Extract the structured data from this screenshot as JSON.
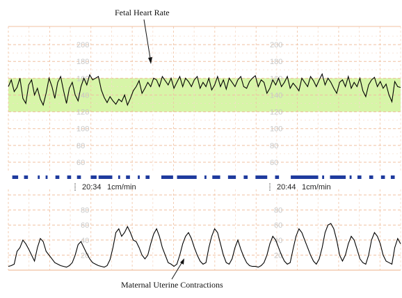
{
  "chart_data": {
    "type": "line",
    "annotations": {
      "fhr_label": "Fetal Heart Rate",
      "uc_label": "Maternal Uterine Contractions"
    },
    "fhr": {
      "ylim": [
        50,
        210
      ],
      "yticks": [
        "200",
        "180",
        "160",
        "140",
        "120",
        "100",
        "80",
        "60"
      ],
      "normal_band": [
        120,
        160
      ],
      "values": [
        150,
        158,
        144,
        149,
        160,
        136,
        130,
        152,
        158,
        140,
        148,
        135,
        128,
        142,
        160,
        150,
        136,
        155,
        162,
        145,
        130,
        148,
        155,
        140,
        133,
        150,
        160,
        152,
        164,
        158,
        160,
        162,
        146,
        137,
        131,
        138,
        133,
        129,
        135,
        132,
        140,
        128,
        136,
        145,
        150,
        157,
        142,
        148,
        155,
        150,
        160,
        158,
        150,
        162,
        157,
        152,
        160,
        148,
        155,
        162,
        150,
        160,
        156,
        150,
        158,
        162,
        148,
        155,
        150,
        160,
        146,
        152,
        162,
        150,
        158,
        147,
        160,
        155,
        150,
        158,
        162,
        150,
        148,
        156,
        160,
        163,
        150,
        158,
        155,
        142,
        148,
        158,
        152,
        160,
        150,
        155,
        162,
        148,
        154,
        150,
        145,
        160,
        155,
        150,
        162,
        157,
        150,
        158,
        165,
        152,
        160,
        155,
        148,
        142,
        155,
        158,
        150,
        162,
        148,
        155,
        150,
        160,
        145,
        138,
        152,
        158,
        161,
        150,
        156,
        148,
        153,
        140,
        132,
        156,
        150,
        149
      ]
    },
    "uc": {
      "ylim": [
        0,
        100
      ],
      "yticks": [
        "80",
        "60",
        "40",
        "20"
      ],
      "values": [
        5,
        6,
        8,
        25,
        30,
        40,
        35,
        28,
        20,
        12,
        30,
        42,
        38,
        25,
        20,
        15,
        10,
        8,
        6,
        5,
        4,
        6,
        10,
        20,
        34,
        38,
        30,
        22,
        15,
        10,
        8,
        6,
        5,
        4,
        6,
        14,
        30,
        50,
        55,
        45,
        50,
        58,
        50,
        40,
        38,
        30,
        20,
        15,
        20,
        35,
        48,
        55,
        45,
        30,
        20,
        10,
        8,
        5,
        8,
        20,
        35,
        45,
        50,
        42,
        30,
        20,
        12,
        8,
        10,
        30,
        45,
        55,
        50,
        35,
        20,
        10,
        8,
        15,
        30,
        40,
        28,
        18,
        10,
        6,
        5,
        5,
        4,
        6,
        10,
        20,
        35,
        45,
        40,
        30,
        20,
        12,
        8,
        10,
        28,
        45,
        55,
        50,
        40,
        30,
        20,
        12,
        8,
        15,
        30,
        50,
        60,
        62,
        55,
        40,
        20,
        12,
        20,
        35,
        45,
        40,
        28,
        15,
        10,
        8,
        20,
        40,
        50,
        45,
        35,
        20,
        12,
        10,
        8,
        30,
        42,
        35
      ]
    },
    "marker_segments": [
      [
        0.01,
        0.025
      ],
      [
        0.04,
        0.05
      ],
      [
        0.075,
        0.08
      ],
      [
        0.095,
        0.1
      ],
      [
        0.12,
        0.13
      ],
      [
        0.15,
        0.16
      ],
      [
        0.175,
        0.185
      ],
      [
        0.21,
        0.225
      ],
      [
        0.23,
        0.265
      ],
      [
        0.28,
        0.285
      ],
      [
        0.3,
        0.31
      ],
      [
        0.33,
        0.335
      ],
      [
        0.35,
        0.36
      ],
      [
        0.39,
        0.42
      ],
      [
        0.43,
        0.48
      ],
      [
        0.5,
        0.505
      ],
      [
        0.52,
        0.54
      ],
      [
        0.56,
        0.58
      ],
      [
        0.6,
        0.61
      ],
      [
        0.63,
        0.66
      ],
      [
        0.68,
        0.69
      ],
      [
        0.72,
        0.79
      ],
      [
        0.8,
        0.805
      ],
      [
        0.82,
        0.86
      ],
      [
        0.87,
        0.875
      ],
      [
        0.89,
        0.9
      ],
      [
        0.92,
        0.93
      ],
      [
        0.95,
        0.96
      ],
      [
        0.975,
        0.985
      ]
    ],
    "time_labels": [
      {
        "time": "20:34",
        "speed": "1cm/min"
      },
      {
        "time": "20:44",
        "speed": "1cm/min"
      }
    ],
    "colors": {
      "trace": "#000000",
      "grid_major": "#f0c0a0",
      "grid_minor": "#f6dccb",
      "normal_band": "#d7f5a8",
      "markers": "#1f3b9e"
    }
  }
}
